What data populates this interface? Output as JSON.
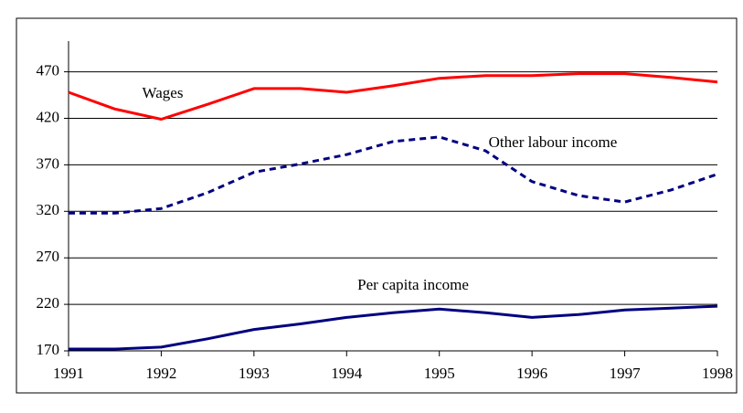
{
  "chart_data": {
    "type": "line",
    "x": [
      1991,
      1991.5,
      1992,
      1992.5,
      1993,
      1993.5,
      1994,
      1994.5,
      1995,
      1995.5,
      1996,
      1996.5,
      1997,
      1997.5,
      1998
    ],
    "series": [
      {
        "name": "Wages",
        "color": "#ff0000",
        "dash": false,
        "values": [
          448,
          430,
          419,
          435,
          452,
          452,
          448,
          455,
          463,
          466,
          466,
          468,
          468,
          464,
          459
        ]
      },
      {
        "name": "Other labour income",
        "color": "#000080",
        "dash": true,
        "values": [
          318,
          318,
          323,
          340,
          362,
          371,
          381,
          395,
          400,
          385,
          352,
          337,
          330,
          343,
          360
        ]
      },
      {
        "name": "Per capita income",
        "color": "#000080",
        "dash": false,
        "values": [
          172,
          172,
          174,
          183,
          193,
          199,
          206,
          211,
          215,
          211,
          206,
          209,
          214,
          216,
          218
        ]
      }
    ],
    "xlim": [
      1991,
      1998
    ],
    "xticks": [
      1991,
      1992,
      1993,
      1994,
      1995,
      1996,
      1997,
      1998
    ],
    "ylim": [
      170,
      503
    ],
    "yticks": [
      170,
      220,
      270,
      320,
      370,
      420,
      470
    ],
    "grid": true
  }
}
